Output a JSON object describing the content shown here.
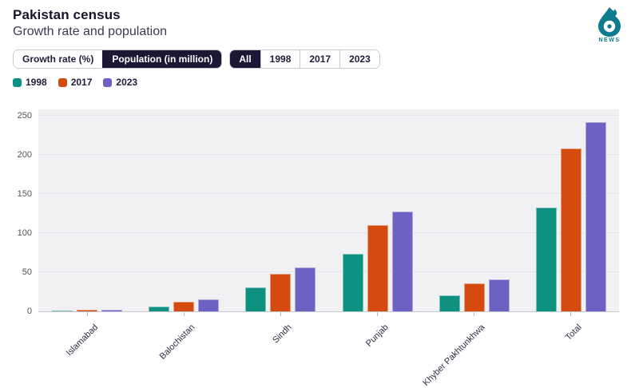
{
  "header": {
    "title": "Pakistan census",
    "subtitle": "Growth rate and population"
  },
  "logo": {
    "news_label": "NEWS",
    "color": "#0d7b8e"
  },
  "controls": {
    "metric_toggle": [
      {
        "label": "Growth rate (%)",
        "selected": false
      },
      {
        "label": "Population (in million)",
        "selected": true
      }
    ],
    "year_filter": [
      {
        "label": "All",
        "selected": true
      },
      {
        "label": "1998",
        "selected": false
      },
      {
        "label": "2017",
        "selected": false
      },
      {
        "label": "2023",
        "selected": false
      }
    ]
  },
  "chart_data": {
    "type": "bar",
    "title": "Pakistan census",
    "subtitle": "Growth rate and population",
    "categories": [
      "Islamabad",
      "Balochistan",
      "Sindh",
      "Punjab",
      "Khyber Pakhtunkhwa",
      "Total"
    ],
    "series": [
      {
        "name": "1998",
        "color": "#0e9180",
        "values": [
          0.8,
          6.6,
          30.4,
          73.6,
          20.9,
          132.4
        ]
      },
      {
        "name": "2017",
        "color": "#d54b0f",
        "values": [
          2.0,
          12.3,
          47.9,
          110.0,
          35.5,
          207.7
        ]
      },
      {
        "name": "2023",
        "color": "#6d62c3",
        "values": [
          2.4,
          14.9,
          55.7,
          127.7,
          40.9,
          241.5
        ]
      }
    ],
    "xlabel": "",
    "ylabel": "",
    "ylim": [
      0,
      250
    ],
    "yticks": [
      0,
      50,
      100,
      150,
      200,
      250
    ],
    "grid": true,
    "legend_position": "top-left",
    "plot_background": "#f1f1f4"
  }
}
